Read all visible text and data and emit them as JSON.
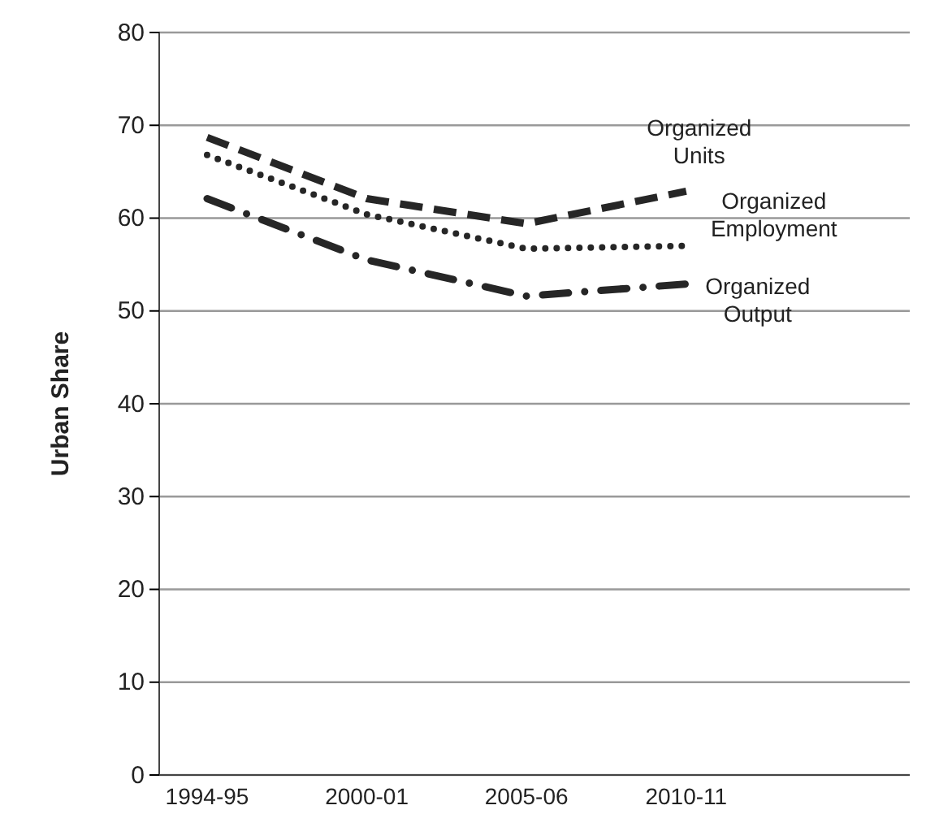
{
  "chart_data": {
    "type": "line",
    "ylabel": "Urban Share",
    "categories": [
      "1994-95",
      "2000-01",
      "2005-06",
      "2010-11"
    ],
    "series": [
      {
        "name": "Organized Units",
        "color": "#262626",
        "line_style": "dashed",
        "values": [
          68.7,
          62.1,
          59.4,
          62.9
        ]
      },
      {
        "name": "Organized Employment",
        "color": "#262626",
        "line_style": "dotted",
        "values": [
          66.8,
          60.4,
          56.7,
          57.0
        ]
      },
      {
        "name": "Organized Output",
        "color": "#262626",
        "line_style": "dashdot",
        "values": [
          62.1,
          55.5,
          51.6,
          52.9
        ]
      }
    ],
    "ylim": [
      0,
      80
    ],
    "yticks": [
      0,
      10,
      20,
      30,
      40,
      50,
      60,
      70,
      80
    ],
    "grid": "y",
    "legend": false,
    "marker": "none"
  }
}
